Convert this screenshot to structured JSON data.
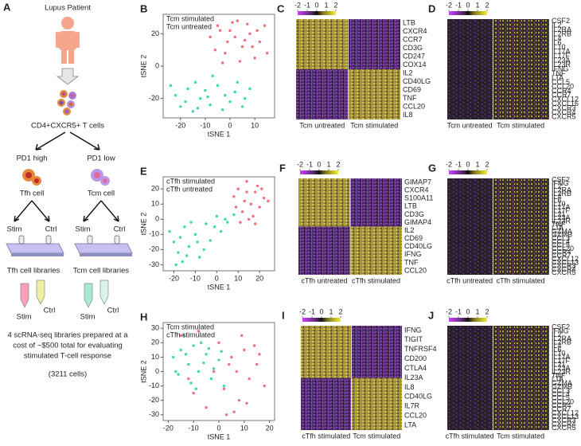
{
  "panel_a": {
    "label": "A",
    "patient": "Lupus Patient",
    "cells": "CD4+CXCR5+ T cells",
    "branches": [
      {
        "gate": "PD1 high",
        "cell": "Tfh cell",
        "stim": "Stim",
        "ctrl": "Ctrl",
        "libraries": "Tfh cell libraries",
        "tube_stim": "Stim",
        "tube_ctrl": "Ctrl"
      },
      {
        "gate": "PD1 low",
        "cell": "Tcm cell",
        "stim": "Stim",
        "ctrl": "Ctrl",
        "libraries": "Tcm cell libraries",
        "tube_stim": "Stim",
        "tube_ctrl": "Ctrl"
      }
    ],
    "summary": [
      "4 scRNA-seq libraries prepared at a",
      "cost of ~$500 total for evaluating",
      "stimulated T-cell response"
    ],
    "count": "(3211 cells)"
  },
  "scatters": [
    {
      "label": "B",
      "xlabel": "tSNE 1",
      "ylabel": "tSNE 2",
      "xlim": [
        -27,
        18
      ],
      "ylim": [
        -32,
        32
      ],
      "xticks": [
        -20,
        -10,
        0,
        10
      ],
      "yticks": [
        -20,
        0,
        20
      ],
      "series": [
        {
          "name": "Tcm stimulated",
          "color": "#3fd9a6",
          "x": [
            -22,
            -20,
            -18,
            -15,
            -12,
            -10,
            -8,
            -5,
            -2,
            0,
            3,
            5,
            8,
            -17,
            -13,
            -7,
            -3,
            2,
            6,
            -24,
            -9,
            -14
          ],
          "y": [
            -18,
            -25,
            -22,
            -28,
            -20,
            -15,
            -24,
            -12,
            -18,
            -22,
            -10,
            -25,
            -14,
            -14,
            -26,
            -6,
            -27,
            -16,
            -20,
            -12,
            -19,
            -10
          ]
        },
        {
          "name": "Tcm untreated",
          "color": "#f0707a",
          "x": [
            -8,
            -5,
            -2,
            0,
            3,
            5,
            8,
            10,
            12,
            14,
            -6,
            -1,
            4,
            7,
            11,
            -3,
            2,
            9,
            15,
            6,
            -4,
            1
          ],
          "y": [
            18,
            25,
            8,
            22,
            28,
            12,
            20,
            5,
            15,
            25,
            10,
            15,
            3,
            26,
            22,
            2,
            18,
            12,
            8,
            16,
            22,
            27
          ]
        }
      ]
    },
    {
      "label": "E",
      "xlabel": "tSNE 1",
      "ylabel": "tSNE 2",
      "xlim": [
        -25,
        27
      ],
      "ylim": [
        -34,
        28
      ],
      "xticks": [
        -20,
        -10,
        0,
        10,
        20
      ],
      "yticks": [
        -30,
        -20,
        -10,
        0,
        10,
        20
      ],
      "series": [
        {
          "name": "cTfh stimulated",
          "color": "#3fd9a6",
          "x": [
            -22,
            -20,
            -18,
            -16,
            -15,
            -13,
            -10,
            -8,
            -5,
            -3,
            0,
            2,
            5,
            8,
            -17,
            -12,
            -6,
            -1,
            4,
            -19,
            -14,
            -9
          ],
          "y": [
            -8,
            -15,
            -22,
            -28,
            -5,
            -18,
            -10,
            -25,
            -3,
            -14,
            2,
            -8,
            -2,
            3,
            -12,
            -2,
            -20,
            -5,
            0,
            -30,
            -24,
            -15
          ]
        },
        {
          "name": "cTfh untreated",
          "color": "#f0707a",
          "x": [
            8,
            10,
            12,
            14,
            16,
            18,
            20,
            22,
            11,
            15,
            19,
            13,
            17,
            21,
            9,
            24,
            14,
            18
          ],
          "y": [
            15,
            20,
            5,
            25,
            10,
            18,
            8,
            14,
            -2,
            0,
            22,
            12,
            2,
            20,
            8,
            12,
            18,
            -3
          ]
        }
      ]
    },
    {
      "label": "H",
      "xlabel": "tSNE 1",
      "ylabel": "tSNE 2",
      "xlim": [
        -22,
        22
      ],
      "ylim": [
        -34,
        34
      ],
      "xticks": [
        -20,
        -10,
        0,
        10,
        20
      ],
      "yticks": [
        -30,
        -20,
        -10,
        0,
        10,
        20,
        30
      ],
      "series": [
        {
          "name": "Tcm stimulated",
          "color": "#3fd9a6",
          "x": [
            -18,
            -15,
            -12,
            -10,
            -8,
            -5,
            -3,
            0,
            -16,
            -11,
            -7,
            -2,
            2,
            -14,
            -9,
            -4,
            -13,
            -6,
            1,
            -17
          ],
          "y": [
            10,
            15,
            5,
            18,
            0,
            12,
            -5,
            8,
            -2,
            -8,
            20,
            2,
            -10,
            25,
            -12,
            16,
            12,
            6,
            14,
            0
          ]
        },
        {
          "name": "cTfh stimulated",
          "color": "#f0707a",
          "x": [
            -15,
            -10,
            -5,
            0,
            3,
            5,
            8,
            10,
            12,
            15,
            18,
            -8,
            -2,
            6,
            9,
            14,
            2,
            -12,
            4,
            11,
            7,
            16
          ],
          "y": [
            25,
            -15,
            -25,
            20,
            -30,
            10,
            -20,
            15,
            -5,
            5,
            -10,
            28,
            0,
            -28,
            25,
            18,
            -12,
            -5,
            5,
            -22,
            0,
            12
          ]
        }
      ]
    }
  ],
  "heatmaps": [
    {
      "label": "C",
      "scale_ticks": [
        -2,
        -1,
        0,
        1,
        2
      ],
      "groups": [
        "Tcm untreated",
        "Tcm stimulated"
      ],
      "genes": [
        "LTB",
        "CXCR4",
        "CCR7",
        "CD3G",
        "CD247",
        "COX14",
        "IL2",
        "CD40LG",
        "CD69",
        "TNF",
        "CCL20",
        "IL8"
      ]
    },
    {
      "label": "D",
      "scale_ticks": [
        -2,
        -1,
        0,
        1,
        2
      ],
      "groups": [
        "Tcm untreated",
        "Tcm stimulated"
      ],
      "genes": [
        "CSF2",
        "IL2",
        "IL2RA",
        "IL2RB",
        "IL4",
        "IL6",
        "IL10",
        "IL17A",
        "IL17F",
        "IL23A",
        "IL23R",
        "IFNG",
        "TNF",
        "LTA",
        "CCL5",
        "CCL20",
        "CCR4",
        "CCR7",
        "CXCL12",
        "CXCL16",
        "CXCR3",
        "CXCR4",
        "CXCR5"
      ]
    },
    {
      "label": "F",
      "scale_ticks": [
        -2,
        -1,
        0,
        1,
        2
      ],
      "groups": [
        "cTfh untreated",
        "cTfh stimulated"
      ],
      "genes": [
        "GIMAP7",
        "CXCR4",
        "S100A11",
        "LTB",
        "CD3G",
        "GIMAP4",
        "IL2",
        "CD69",
        "CD40LG",
        "IFNG",
        "TNF",
        "CCL20"
      ]
    },
    {
      "label": "G",
      "scale_ticks": [
        -2,
        -1,
        0,
        1,
        2
      ],
      "groups": [
        "cTfh untreated",
        "cTfh stimulated"
      ],
      "genes": [
        "CSF2",
        "IFNG",
        "IL2",
        "IL2RA",
        "IL2RB",
        "IL4",
        "IL6",
        "IL10",
        "IL17A",
        "IL17F",
        "IL21",
        "IL23A",
        "IL23R",
        "TNF",
        "LTA",
        "GZMA",
        "GZMB",
        "CCL3",
        "CCL4",
        "CCL5",
        "CCL20",
        "CCR4",
        "CCR7",
        "CXCL12",
        "CXCL13",
        "CXCR3",
        "CXCR4",
        "CXCR5"
      ]
    },
    {
      "label": "I",
      "scale_ticks": [
        -2,
        -1,
        0,
        1,
        2
      ],
      "groups": [
        "cTfh stimulated",
        "Tcm stimulated"
      ],
      "genes": [
        "IFNG",
        "TIGIT",
        "TNFRSF4",
        "CD200",
        "CTLA4",
        "IL23A",
        "IL8",
        "CD40LG",
        "IL7R",
        "CCL20",
        "LTA"
      ]
    },
    {
      "label": "J",
      "scale_ticks": [
        -2,
        -1,
        0,
        1,
        2
      ],
      "groups": [
        "cTfh stimulated",
        "Tcm stimulated"
      ],
      "genes": [
        "CSF2",
        "IFNG",
        "IL2",
        "IL2RA",
        "IL2RB",
        "IL4",
        "IL6",
        "IL10",
        "IL17A",
        "IL17F",
        "IL21",
        "IL23A",
        "IL23R",
        "TNF",
        "LTA",
        "GZMA",
        "GZMB",
        "CCL3",
        "CCL4",
        "CCL5",
        "CCL20",
        "CCR4",
        "CCR7",
        "CXCL12",
        "CXCL13",
        "CXCR3",
        "CXCR4",
        "CXCR5"
      ]
    }
  ]
}
